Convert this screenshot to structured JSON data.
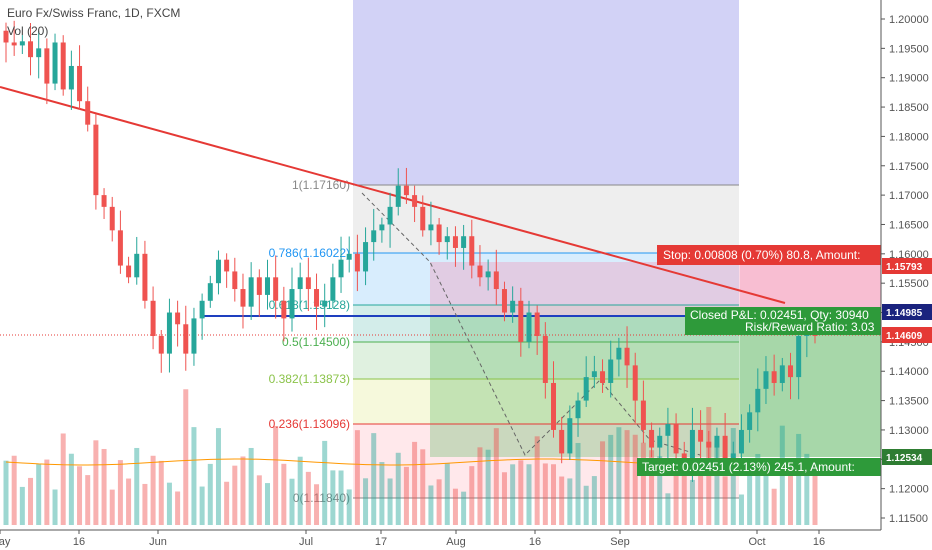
{
  "header": {
    "title": "Euro Fx/Swiss Franc, 1D, FXCM",
    "volume_label": "Vol (20)"
  },
  "price_axis": {
    "ticks": [
      "1.20000",
      "1.19500",
      "1.19000",
      "1.18500",
      "1.18000",
      "1.17500",
      "1.17000",
      "1.16500",
      "1.16000",
      "1.15500",
      "1.15000",
      "1.14500",
      "1.14000",
      "1.13500",
      "1.13000",
      "1.12500",
      "1.12000",
      "1.11500"
    ],
    "tags": [
      {
        "label": "1.15793",
        "color": "#e53935"
      },
      {
        "label": "1.14985",
        "color": "#1a237e"
      },
      {
        "label": "1.14609",
        "color": "#e53935"
      },
      {
        "label": "1.12534",
        "color": "#2e7d32"
      }
    ]
  },
  "time_axis": {
    "labels": [
      "May",
      "16",
      "Jun",
      "Jul",
      "17",
      "Aug",
      "16",
      "Sep",
      "Oct",
      "16"
    ]
  },
  "fibonacci": [
    {
      "label": "1(1.17160)",
      "color": "#888888"
    },
    {
      "label": "0.786(1.16022)",
      "color": "#2196f3"
    },
    {
      "label": "0.618(1.15128)",
      "color": "#26a69a"
    },
    {
      "label": "0.5(1.14500)",
      "color": "#4caf50"
    },
    {
      "label": "0.382(1.13873)",
      "color": "#8bc34a"
    },
    {
      "label": "0.236(1.13096)",
      "color": "#e53935"
    },
    {
      "label": "0(1.11840)",
      "color": "#888888"
    }
  ],
  "position": {
    "stop_text": "Stop: 0.00808 (0.70%) 80.8, Amount:",
    "closed_text": "Closed P&L: 0.02451, Qty: 30940",
    "ratio_text": "Risk/Reward Ratio: 3.03",
    "target_text": "Target: 0.02451 (2.13%) 245.1, Amount:"
  },
  "colors": {
    "bull": "#26a69a",
    "bear": "#ef5350",
    "trendline": "#e53935",
    "entry_line": "#1e3fbf",
    "fib_zone": "#5c5cdf"
  },
  "chart_data": {
    "type": "candlestick",
    "symbol": "Euro Fx/Swiss Franc",
    "timeframe": "1D",
    "ylim": [
      1.1125,
      1.2025
    ],
    "series": [
      {
        "name": "Vol (20)",
        "values": []
      }
    ],
    "closes": [
      1.196,
      1.1955,
      1.1962,
      1.1935,
      1.195,
      1.189,
      1.196,
      1.188,
      1.192,
      1.186,
      1.182,
      1.17,
      1.168,
      1.164,
      1.158,
      1.156,
      1.16,
      1.152,
      1.146,
      1.143,
      1.15,
      1.148,
      1.143,
      1.149,
      1.152,
      1.155,
      1.159,
      1.157,
      1.154,
      1.151,
      1.156,
      1.153,
      1.156,
      1.152,
      1.149,
      1.154,
      1.156,
      1.154,
      1.151,
      1.152,
      1.156,
      1.159,
      1.16,
      1.157,
      1.162,
      1.164,
      1.165,
      1.168,
      1.1716,
      1.17,
      1.168,
      1.164,
      1.165,
      1.162,
      1.163,
      1.161,
      1.163,
      1.158,
      1.156,
      1.157,
      1.154,
      1.15,
      1.152,
      1.145,
      1.15,
      1.146,
      1.138,
      1.13,
      1.126,
      1.132,
      1.135,
      1.139,
      1.14,
      1.138,
      1.142,
      1.144,
      1.141,
      1.135,
      1.13,
      1.127,
      1.129,
      1.131,
      1.126,
      1.124,
      1.13,
      1.128,
      1.127,
      1.129,
      1.125,
      1.126,
      1.13,
      1.133,
      1.137,
      1.14,
      1.138,
      1.141,
      1.139,
      1.146,
      1.147,
      1.146
    ]
  }
}
